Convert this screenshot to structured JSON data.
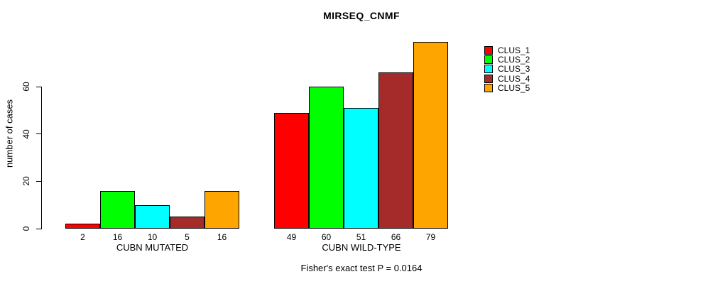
{
  "chart_data": {
    "type": "bar",
    "title": "MIRSEQ_CNMF",
    "xlabel": "",
    "ylabel": "number of cases",
    "ylim": [
      0,
      79
    ],
    "y_ticks": [
      0,
      20,
      40,
      60
    ],
    "grid": false,
    "legend_position": "top-right-inside",
    "categories": [
      "CUBN MUTATED",
      "CUBN WILD-TYPE"
    ],
    "series": [
      {
        "name": "CLUS_1",
        "color": "#ff0000",
        "values": [
          2,
          49
        ]
      },
      {
        "name": "CLUS_2",
        "color": "#00ff00",
        "values": [
          16,
          60
        ]
      },
      {
        "name": "CLUS_3",
        "color": "#00ffff",
        "values": [
          10,
          51
        ]
      },
      {
        "name": "CLUS_4",
        "color": "#a52a2a",
        "values": [
          5,
          66
        ]
      },
      {
        "name": "CLUS_5",
        "color": "#ffa500",
        "values": [
          16,
          79
        ]
      }
    ],
    "bar_value_labels_shown": true,
    "annotation": "Fisher's exact test P = 0.0164",
    "text_color": "#000000",
    "background_color": "#ffffff"
  }
}
